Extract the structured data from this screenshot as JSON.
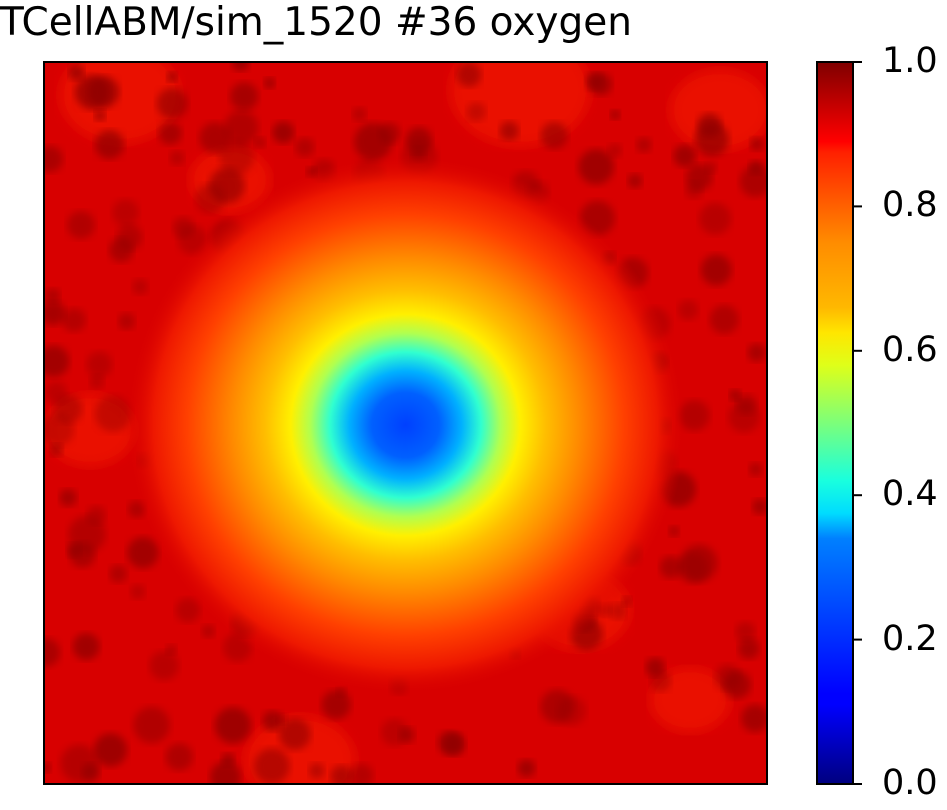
{
  "chart_data": {
    "type": "heatmap",
    "title": "TCellABM/sim_1520 #36 oxygen",
    "xlabel": "",
    "ylabel": "",
    "x_ticks": [],
    "y_ticks": [],
    "colormap": "jet",
    "colorbar": {
      "range": [
        0.0,
        1.0
      ],
      "ticks": [
        "0.0",
        "0.2",
        "0.4",
        "0.6",
        "0.8",
        "1.0"
      ]
    },
    "field_description": {
      "background_value": 0.95,
      "hotspot_min_value": 0.22,
      "hotspot_center_fraction": [
        0.5,
        0.5
      ]
    }
  }
}
